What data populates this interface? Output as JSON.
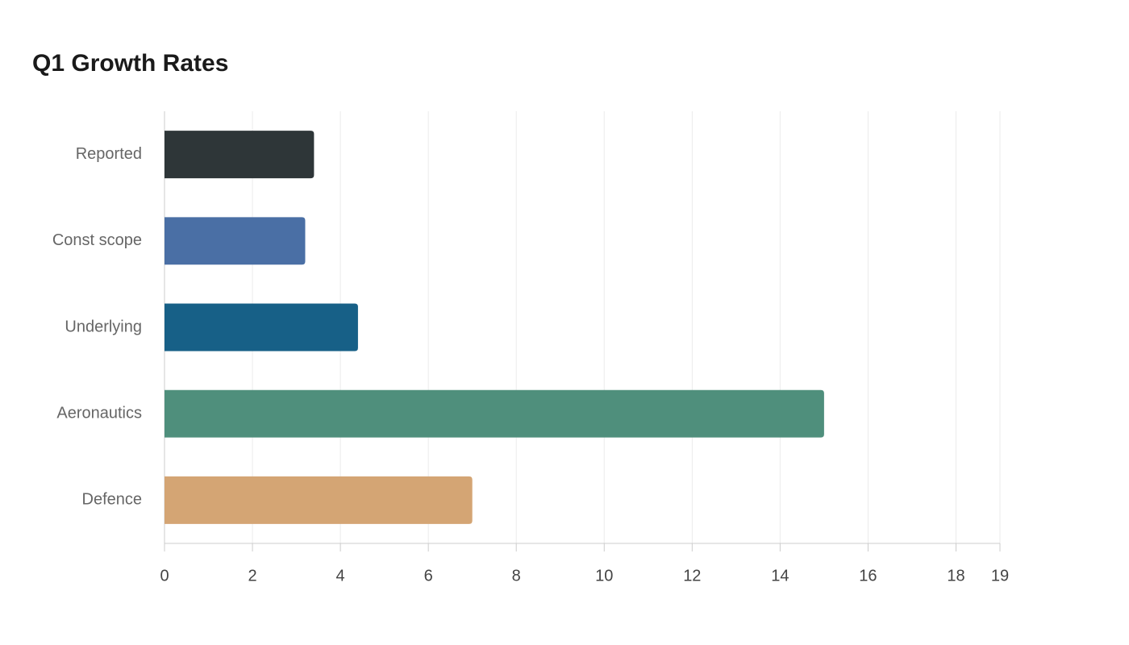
{
  "chart_data": {
    "type": "hbar",
    "title": "Q1 Growth Rates",
    "categories": [
      "Reported",
      "Const scope",
      "Underlying",
      "Aeronautics",
      "Defence"
    ],
    "values": [
      3.4,
      3.2,
      4.4,
      15,
      7
    ],
    "colors": [
      "#2e3638",
      "#4a6fa5",
      "#176087",
      "#4f8f7c",
      "#d4a574"
    ],
    "xlim": [
      0,
      19
    ],
    "xticks": [
      0,
      2,
      4,
      6,
      8,
      10,
      12,
      14,
      16,
      18,
      19
    ],
    "grid": true
  }
}
